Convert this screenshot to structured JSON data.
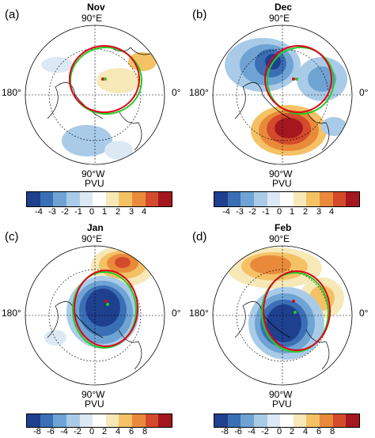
{
  "unit": "PVU",
  "geo_labels": {
    "top": "90°E",
    "bottom": "90°W",
    "left": "180°",
    "right": "0°"
  },
  "colors": {
    "neg": [
      "#1f3f8f",
      "#3a6fb5",
      "#6ea3d4",
      "#a9cbe8",
      "#dce9f5"
    ],
    "pos": [
      "#f7e8b8",
      "#f4c265",
      "#e98a3b",
      "#d44a2c",
      "#a4171f"
    ],
    "center": "#ffffff",
    "contour_red": "#e0001b",
    "contour_green": "#22cc22"
  },
  "panels": [
    {
      "id": "a",
      "letter": "(a)",
      "month": "Nov",
      "ticks": [
        "-4",
        "-3",
        "-2",
        "-1",
        "0",
        "1",
        "2",
        "3",
        "4"
      ]
    },
    {
      "id": "b",
      "letter": "(b)",
      "month": "Dec",
      "ticks": [
        "-4",
        "-3",
        "-2",
        "-1",
        "0",
        "1",
        "2",
        "3",
        "4"
      ]
    },
    {
      "id": "c",
      "letter": "(c)",
      "month": "Jan",
      "ticks": [
        "-8",
        "-6",
        "-4",
        "-2",
        "0",
        "2",
        "4",
        "6",
        "8"
      ]
    },
    {
      "id": "d",
      "letter": "(d)",
      "month": "Feb",
      "ticks": [
        "-8",
        "-6",
        "-4",
        "-2",
        "0",
        "2",
        "4",
        "6",
        "8"
      ]
    }
  ]
}
